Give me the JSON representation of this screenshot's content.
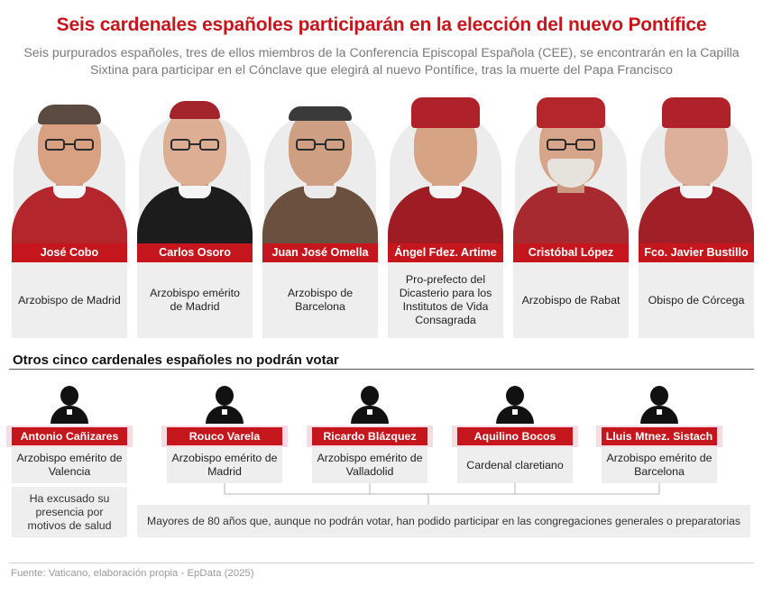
{
  "header": {
    "title": "Seis cardenales españoles participarán en la elección del nuevo Pontífice",
    "subtitle": "Seis purpurados españoles, tres de ellos miembros de la Conferencia Episcopal Española (CEE), se encontrarán en la Capilla Sixtina para participar en el Cónclave que elegirá al nuevo Pontífice, tras la muerte del Papa Francisco"
  },
  "electors": [
    {
      "name": "José Cobo",
      "role": "Arzobispo de Madrid",
      "vestment_color": "#b3262c"
    },
    {
      "name": "Carlos Osoro",
      "role": "Arzobispo emérito de Madrid",
      "vestment_color": "#1c1c1c"
    },
    {
      "name": "Juan José Omella",
      "role": "Arzobispo de Barcelona",
      "vestment_color": "#6b4f3f"
    },
    {
      "name": "Ángel Fdez. Artime",
      "role": "Pro-prefecto del Dicasterio para los Institutos de Vida Consagrada",
      "vestment_color": "#9e1d25"
    },
    {
      "name": "Cristóbal López",
      "role": "Arzobispo de Rabat",
      "vestment_color": "#a62a2f"
    },
    {
      "name": "Fco. Javier Bustillo",
      "role": "Obispo de Córcega",
      "vestment_color": "#a11f27"
    }
  ],
  "non_voters": {
    "section_title": "Otros cinco cardenales españoles no podrán votar",
    "cardinals": [
      {
        "name": "Antonio Cañizares",
        "role": "Arzobispo emérito de Valencia",
        "note": "Ha excusado su presencia por motivos de salud"
      },
      {
        "name": "Rouco Varela",
        "role": "Arzobispo emérito de Madrid"
      },
      {
        "name": "Ricardo Blázquez",
        "role": "Arzobispo emérito de Valladolid"
      },
      {
        "name": "Aquilino Bocos",
        "role": "Cardenal claretiano"
      },
      {
        "name": "Lluis Mtnez. Sistach",
        "role": "Arzobispo emérito de Barcelona"
      }
    ],
    "group_note": "Mayores de 80 años que, aunque no podrán votar, han podido participar en las congregaciones generales o preparatorias"
  },
  "footer": {
    "source": "Fuente: Vaticano, elaboración propia - EpData (2025)"
  },
  "colors": {
    "accent_red": "#c4161c",
    "box_gray": "#eeeeee",
    "highlight_pink": "#f8dbe3"
  }
}
